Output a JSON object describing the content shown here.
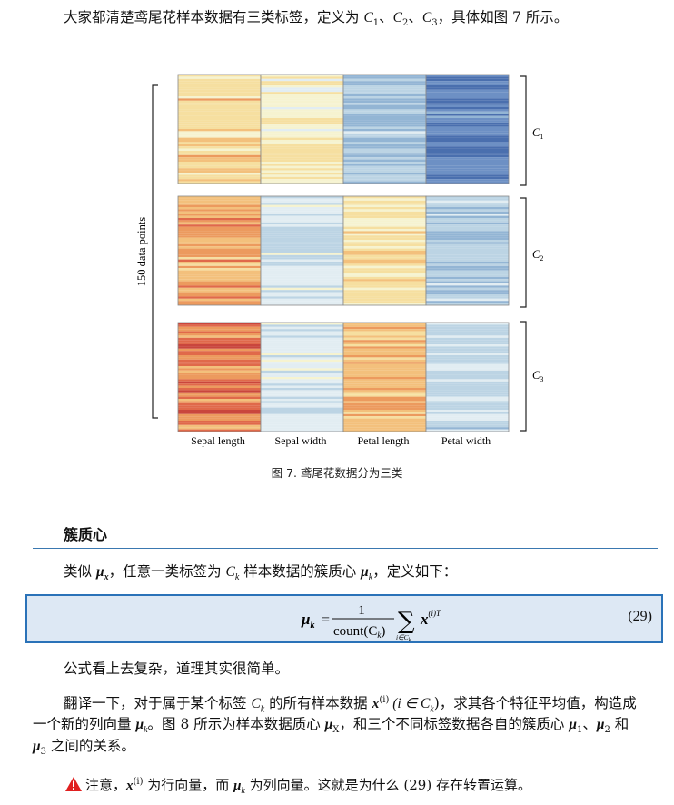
{
  "intro": {
    "text_before": "大家都清楚鸢尾花样本数据有三类标签，定义为 ",
    "labels": [
      "C",
      "1",
      "、",
      "C",
      "2",
      "、",
      "C",
      "3"
    ],
    "text_after": "，具体如图 7 所示。"
  },
  "figure": {
    "side_label": "150 data points",
    "groups": [
      "C1",
      "C2",
      "C3"
    ],
    "group_labels": [
      {
        "base": "C",
        "sub": "1"
      },
      {
        "base": "C",
        "sub": "2"
      },
      {
        "base": "C",
        "sub": "3"
      }
    ],
    "columns": [
      "Sepal length",
      "Sepal width",
      "Petal length",
      "Petal width"
    ],
    "caption": "图 7. 鸢尾花数据分为三类"
  },
  "section": {
    "title": "簇质心"
  },
  "definition": {
    "t1": "类似 ",
    "t2": "x",
    "t3": "，任意一类标签为 ",
    "t4": "C",
    "t5": "k",
    "t6": " 样本数据的簇质心 ",
    "t7": "μ",
    "t8": "k",
    "t9": "，定义如下："
  },
  "formula": {
    "lhs": "μ",
    "lhs_sub": "k",
    "eq": " = ",
    "numerator": "1",
    "denominator": "count(C",
    "denominator_sub": "k",
    "denominator_close": ")",
    "sum_sub": "i∈C",
    "sum_sub_k": "k",
    "term": "x",
    "term_sup": "(i)T",
    "number": "(29)"
  },
  "para1": "公式看上去复杂，道理其实很简单。",
  "para2": {
    "t1": "翻译一下，对于属于某个标签 ",
    "t2": "C",
    "t3": "k",
    "t4": " 的所有样本数据 ",
    "t5": "x",
    "t6": "(i)",
    "t7": " (i ∈ C",
    "t8": "k",
    "t9": ")，求其各个特征平均值，构造成",
    "line2a": "一个新的列向量 ",
    "line2b": "μ",
    "line2c": "k",
    "line2d": "。图 8 所示为样本数据质心 ",
    "line2e": "μ",
    "line2f": "X",
    "line2g": "，和三个不同标签数据各自的簇质心 ",
    "line2h": "μ",
    "line2i": "1",
    "line2j": "、",
    "line2k": "μ",
    "line2l": "2",
    "line2m": " 和",
    "line3a": "μ",
    "line3b": "3",
    "line3c": " 之间的关系。"
  },
  "note": {
    "t1": "注意，",
    "t2": "x",
    "t3": "(i)",
    "t4": " 为行向量，而 ",
    "t5": "μ",
    "t6": "k",
    "t7": " 为列向量。这就是为什么 (29) 存在转置运算。"
  },
  "colors": {
    "rule": "#3a78b0",
    "box_border": "#2a72b8",
    "box_fill": "#dde8f4",
    "warn": "#e02020"
  }
}
